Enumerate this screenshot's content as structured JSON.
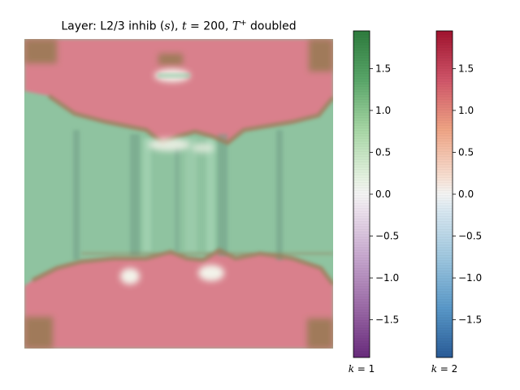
{
  "chart_data": {
    "type": "heatmap",
    "title": {
      "prefix": "Layer: L2/3 inhib (",
      "var": "s",
      "mid": "), ",
      "tvar": "t",
      "tval": " = 200, ",
      "Tvar": "T",
      "Tsup": "+",
      "suffix": " doubled"
    },
    "colorbars": [
      {
        "label": "k = 1",
        "label_var": "k",
        "label_val": " = 1",
        "cmap": "PRGn",
        "vmin": -1.95,
        "vmax": 1.95,
        "ticks": [
          1.5,
          1.0,
          0.5,
          0.0,
          -0.5,
          -1.0,
          -1.5
        ],
        "tick_labels": [
          "1.5",
          "1.0",
          "0.5",
          "0.0",
          "−0.5",
          "−1.0",
          "−1.5"
        ]
      },
      {
        "label": "k = 2",
        "label_var": "k",
        "label_val": " = 2",
        "cmap": "RdBu_r",
        "vmin": -1.95,
        "vmax": 1.95,
        "ticks": [
          1.5,
          1.0,
          0.5,
          0.0,
          -0.5,
          -1.0,
          -1.5
        ],
        "tick_labels": [
          "1.5",
          "1.0",
          "0.5",
          "0.0",
          "−0.5",
          "−1.0",
          "−1.5"
        ]
      }
    ],
    "heatmap_description": "Overlay of two activity fields; pink (k=2 positive) bands at top and bottom, green (k=1 positive) central region with vertical stripes, brownish corners where both overlap, bright spots near boundaries.",
    "colors": {
      "green_region": "#8fc3a0",
      "pink_region": "#d9808c",
      "brown_corner": "#9a7a55",
      "bright_spot": "#f3f3ea"
    }
  }
}
